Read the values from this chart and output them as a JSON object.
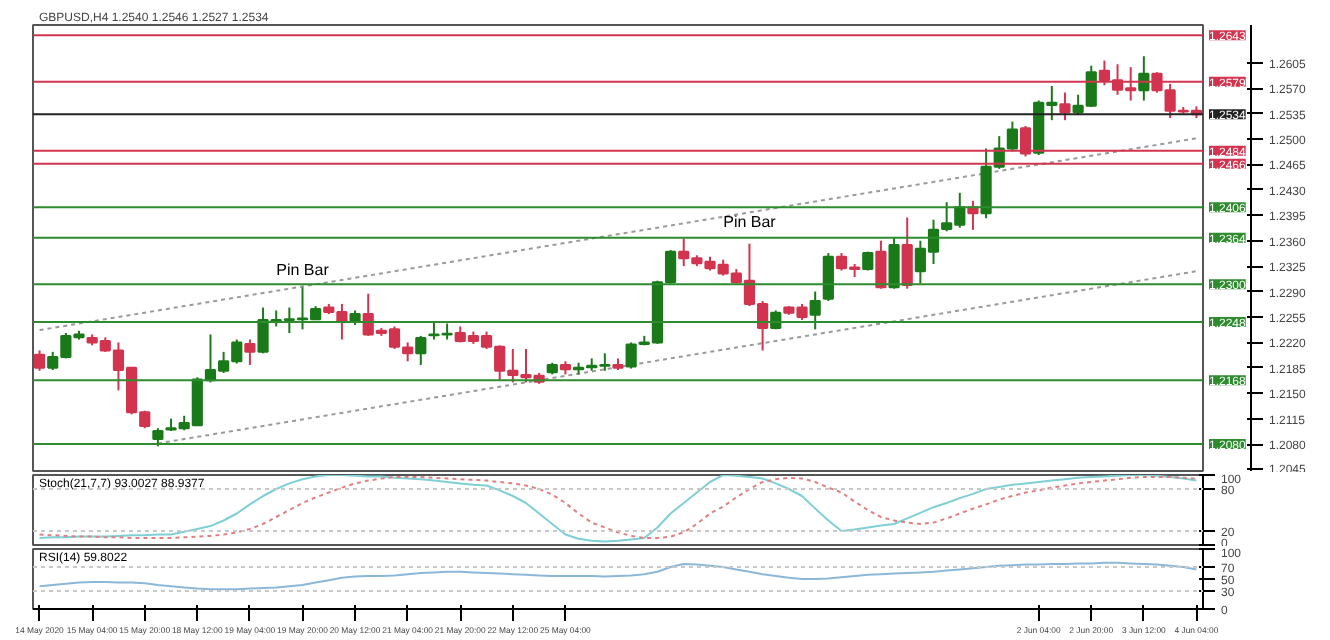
{
  "chart_data": [
    {
      "type": "candlestick",
      "title": "GBPUSD,H4 1.2540 1.2546 1.2527 1.2534",
      "tick_labels": "y",
      "ohlc": [
        [
          1.2203,
          1.2209,
          1.2181,
          1.2185
        ],
        [
          1.2185,
          1.2207,
          1.2182,
          1.22
        ],
        [
          1.22,
          1.2233,
          1.2198,
          1.2229
        ],
        [
          1.2227,
          1.2236,
          1.2224,
          1.2231
        ],
        [
          1.2226,
          1.2231,
          1.2216,
          1.222
        ],
        [
          1.2222,
          1.2227,
          1.2207,
          1.2209
        ],
        [
          1.2209,
          1.222,
          1.2154,
          1.2182
        ],
        [
          1.2185,
          1.2186,
          1.2121,
          1.2124
        ],
        [
          1.2124,
          1.2126,
          1.2102,
          1.2105
        ],
        [
          1.2087,
          1.2102,
          1.2077,
          1.2098
        ],
        [
          1.21,
          1.2115,
          1.2098,
          1.2102
        ],
        [
          1.2102,
          1.2119,
          1.2099,
          1.2109
        ],
        [
          1.2106,
          1.2172,
          1.2105,
          1.2169
        ],
        [
          1.2168,
          1.2231,
          1.2165,
          1.2182
        ],
        [
          1.2181,
          1.2207,
          1.2178,
          1.2194
        ],
        [
          1.2194,
          1.2224,
          1.2191,
          1.222
        ],
        [
          1.2218,
          1.2224,
          1.2189,
          1.2207
        ],
        [
          1.2207,
          1.2268,
          1.2205,
          1.2251
        ],
        [
          1.2249,
          1.2264,
          1.2242,
          1.2251
        ],
        [
          1.2251,
          1.2268,
          1.2233,
          1.2252
        ],
        [
          1.2252,
          1.2296,
          1.2238,
          1.2253
        ],
        [
          1.2252,
          1.227,
          1.2251,
          1.2266
        ],
        [
          1.2268,
          1.2273,
          1.2259,
          1.2262
        ],
        [
          1.2262,
          1.2273,
          1.2224,
          1.2249
        ],
        [
          1.2249,
          1.2264,
          1.2244,
          1.2259
        ],
        [
          1.2259,
          1.2287,
          1.2229,
          1.2231
        ],
        [
          1.2236,
          1.224,
          1.2229,
          1.2233
        ],
        [
          1.2238,
          1.2242,
          1.2211,
          1.2214
        ],
        [
          1.2213,
          1.222,
          1.2194,
          1.2205
        ],
        [
          1.2205,
          1.2229,
          1.2189,
          1.2226
        ],
        [
          1.223,
          1.2249,
          1.2224,
          1.2231
        ],
        [
          1.2231,
          1.2246,
          1.2224,
          1.2232
        ],
        [
          1.2233,
          1.2242,
          1.222,
          1.2222
        ],
        [
          1.2229,
          1.2235,
          1.2218,
          1.2222
        ],
        [
          1.2229,
          1.2235,
          1.2211,
          1.2214
        ],
        [
          1.2214,
          1.2216,
          1.2168,
          1.2181
        ],
        [
          1.2181,
          1.2211,
          1.2165,
          1.2175
        ],
        [
          1.2175,
          1.2211,
          1.2165,
          1.2172
        ],
        [
          1.2174,
          1.2178,
          1.2163,
          1.2166
        ],
        [
          1.2179,
          1.2192,
          1.2176,
          1.2189
        ],
        [
          1.2189,
          1.2194,
          1.2176,
          1.2183
        ],
        [
          1.2183,
          1.2192,
          1.2176,
          1.2185
        ],
        [
          1.2186,
          1.2198,
          1.2181,
          1.2188
        ],
        [
          1.2188,
          1.2205,
          1.2181,
          1.2189
        ],
        [
          1.2189,
          1.2198,
          1.2182,
          1.2185
        ],
        [
          1.2187,
          1.222,
          1.2184,
          1.2217
        ],
        [
          1.2218,
          1.2229,
          1.2216,
          1.222
        ],
        [
          1.222,
          1.2305,
          1.2218,
          1.2303
        ],
        [
          1.2303,
          1.2347,
          1.2301,
          1.2345
        ],
        [
          1.2345,
          1.2363,
          1.2325,
          1.2336
        ],
        [
          1.2336,
          1.234,
          1.2325,
          1.2329
        ],
        [
          1.2331,
          1.2338,
          1.2319,
          1.2322
        ],
        [
          1.2327,
          1.2334,
          1.2312,
          1.2315
        ],
        [
          1.2315,
          1.2321,
          1.2301,
          1.2303
        ],
        [
          1.2305,
          1.2356,
          1.227,
          1.2273
        ],
        [
          1.2273,
          1.2277,
          1.2209,
          1.224
        ],
        [
          1.224,
          1.2264,
          1.2238,
          1.2261
        ],
        [
          1.2268,
          1.227,
          1.2258,
          1.2261
        ],
        [
          1.2268,
          1.2273,
          1.2251,
          1.2255
        ],
        [
          1.2258,
          1.229,
          1.2238,
          1.2277
        ],
        [
          1.228,
          1.2343,
          1.2277,
          1.2338
        ],
        [
          1.2338,
          1.2343,
          1.2319,
          1.2322
        ],
        [
          1.2323,
          1.2328,
          1.231,
          1.2321
        ],
        [
          1.2321,
          1.2345,
          1.2319,
          1.2343
        ],
        [
          1.2345,
          1.236,
          1.2294,
          1.2296
        ],
        [
          1.2296,
          1.2364,
          1.2294,
          1.2354
        ],
        [
          1.2354,
          1.2392,
          1.2294,
          1.2299
        ],
        [
          1.2318,
          1.236,
          1.2301,
          1.2349
        ],
        [
          1.2345,
          1.2389,
          1.2328,
          1.2375
        ],
        [
          1.2376,
          1.2413,
          1.2373,
          1.2384
        ],
        [
          1.2382,
          1.2426,
          1.2378,
          1.2406
        ],
        [
          1.2406,
          1.2415,
          1.2375,
          1.2398
        ],
        [
          1.2398,
          1.2487,
          1.2391,
          1.2462
        ],
        [
          1.2462,
          1.2504,
          1.2459,
          1.2487
        ],
        [
          1.2487,
          1.2524,
          1.2483,
          1.2513
        ],
        [
          1.2515,
          1.2518,
          1.2476,
          1.248
        ],
        [
          1.2481,
          1.2553,
          1.2478,
          1.255
        ],
        [
          1.2547,
          1.2573,
          1.2526,
          1.255
        ],
        [
          1.2548,
          1.2564,
          1.2526,
          1.2537
        ],
        [
          1.2537,
          1.2561,
          1.2533,
          1.2546
        ],
        [
          1.2546,
          1.2601,
          1.2544,
          1.2592
        ],
        [
          1.2594,
          1.2608,
          1.2574,
          1.2581
        ],
        [
          1.2581,
          1.2603,
          1.2561,
          1.2568
        ],
        [
          1.257,
          1.2599,
          1.2553,
          1.2567
        ],
        [
          1.2567,
          1.2614,
          1.2553,
          1.259
        ],
        [
          1.259,
          1.2592,
          1.2564,
          1.2567
        ],
        [
          1.2567,
          1.2576,
          1.2529,
          1.2539
        ],
        [
          1.2539,
          1.2544,
          1.2535,
          1.2538
        ],
        [
          1.2539,
          1.2545,
          1.2529,
          1.2534
        ]
      ],
      "colors": [
        "#d2344f",
        "#1a7a1a",
        "#1a7a1a",
        "#1a7a1a",
        "#d2344f",
        "#d2344f",
        "#d2344f",
        "#d2344f",
        "#d2344f",
        "#1a7a1a",
        "#1a7a1a",
        "#1a7a1a",
        "#1a7a1a",
        "#1a7a1a",
        "#1a7a1a",
        "#1a7a1a",
        "#d2344f",
        "#1a7a1a",
        "#1a7a1a",
        "#1a7a1a",
        "#1a7a1a",
        "#1a7a1a",
        "#d2344f",
        "#d2344f",
        "#1a7a1a",
        "#d2344f",
        "#d2344f",
        "#d2344f",
        "#d2344f",
        "#1a7a1a",
        "#1a7a1a",
        "#1a7a1a",
        "#d2344f",
        "#d2344f",
        "#d2344f",
        "#d2344f",
        "#d2344f",
        "#d2344f",
        "#d2344f",
        "#1a7a1a",
        "#d2344f",
        "#1a7a1a",
        "#1a7a1a",
        "#1a7a1a",
        "#d2344f",
        "#1a7a1a",
        "#1a7a1a",
        "#1a7a1a",
        "#1a7a1a",
        "#d2344f",
        "#d2344f",
        "#d2344f",
        "#d2344f",
        "#d2344f",
        "#d2344f",
        "#d2344f",
        "#1a7a1a",
        "#d2344f",
        "#d2344f",
        "#1a7a1a",
        "#1a7a1a",
        "#d2344f",
        "#d2344f",
        "#1a7a1a",
        "#d2344f",
        "#1a7a1a",
        "#d2344f",
        "#1a7a1a",
        "#1a7a1a",
        "#1a7a1a",
        "#1a7a1a",
        "#d2344f",
        "#1a7a1a",
        "#1a7a1a",
        "#1a7a1a",
        "#d2344f",
        "#1a7a1a",
        "#1a7a1a",
        "#d2344f",
        "#1a7a1a",
        "#1a7a1a",
        "#d2344f",
        "#d2344f",
        "#d2344f",
        "#1a7a1a",
        "#d2344f",
        "#d2344f",
        "#d2344f",
        "#d2344f"
      ],
      "series": [
        {
          "type": "line",
          "values": [
            1.2237,
            1.224,
            1.2243,
            1.2246,
            1.2249,
            1.2252,
            1.2255,
            1.2258,
            1.2261,
            1.2264,
            1.2267,
            1.227,
            1.2273,
            1.2276,
            1.2279,
            1.2282,
            1.2285,
            1.2288,
            1.2291,
            1.2294,
            1.2297,
            1.23,
            1.2303,
            1.2306,
            1.2309,
            1.2312,
            1.2315,
            1.2318,
            1.2321,
            1.2324,
            1.2327,
            1.233,
            1.2333,
            1.2336,
            1.2339,
            1.2342,
            1.2345,
            1.2348,
            1.2351,
            1.2354,
            1.2357,
            1.236,
            1.2363,
            1.2366,
            1.2369,
            1.2372,
            1.2375,
            1.2378,
            1.2381,
            1.2384,
            1.2387,
            1.239,
            1.2393,
            1.2396,
            1.2399,
            1.2402,
            1.2405,
            1.2408,
            1.2411,
            1.2414,
            1.2417,
            1.242,
            1.2423,
            1.2426,
            1.2429,
            1.2432,
            1.2435,
            1.2438,
            1.2441,
            1.2444,
            1.2447,
            1.245,
            1.2453,
            1.2456,
            1.2459,
            1.2462,
            1.2465,
            1.2468,
            1.2471,
            1.2474,
            1.2477,
            1.248,
            1.2483,
            1.2486,
            1.2489,
            1.2492,
            1.2495,
            1.2498,
            1.2501
          ],
          "color": "#9a9a9a",
          "line_style": "dotted"
        },
        {
          "type": "line",
          "values": [
            null,
            null,
            null,
            null,
            null,
            null,
            null,
            null,
            null,
            1.2081,
            1.2084,
            1.2087,
            1.209,
            1.2093,
            1.2096,
            1.2099,
            1.2102,
            1.2105,
            1.2108,
            1.2111,
            1.2114,
            1.2117,
            1.212,
            1.2123,
            1.2126,
            1.2129,
            1.2132,
            1.2135,
            1.2138,
            1.2141,
            1.2144,
            1.2147,
            1.215,
            1.2153,
            1.2156,
            1.2159,
            1.2162,
            1.2165,
            1.2168,
            1.2171,
            1.2174,
            1.2177,
            1.218,
            1.2183,
            1.2186,
            1.2189,
            1.2192,
            1.2195,
            1.2198,
            1.2201,
            1.2204,
            1.2207,
            1.221,
            1.2213,
            1.2216,
            1.2219,
            1.2222,
            1.2225,
            1.2228,
            1.2231,
            1.2234,
            1.2237,
            1.224,
            1.2243,
            1.2246,
            1.2249,
            1.2252,
            1.2255,
            1.2258,
            1.2261,
            1.2264,
            1.2267,
            1.227,
            1.2273,
            1.2276,
            1.2279,
            1.2282,
            1.2285,
            1.2288,
            1.2291,
            1.2294,
            1.2297,
            1.23,
            1.2303,
            1.2306,
            1.2309,
            1.2312,
            1.2315,
            1.2318
          ],
          "color": "#9a9a9a",
          "line_style": "dotted"
        }
      ],
      "ylim": [
        1.2043,
        1.2657
      ],
      "yticks": [
        {
          "value": 1.2045,
          "label": "1.2045"
        },
        {
          "value": 1.208,
          "label": "1.2080"
        },
        {
          "value": 1.2115,
          "label": "1.2115"
        },
        {
          "value": 1.215,
          "label": "1.2150"
        },
        {
          "value": 1.2185,
          "label": "1.2185"
        },
        {
          "value": 1.222,
          "label": "1.2220"
        },
        {
          "value": 1.2255,
          "label": "1.2255"
        },
        {
          "value": 1.229,
          "label": "1.2290"
        },
        {
          "value": 1.2325,
          "label": "1.2325"
        },
        {
          "value": 1.236,
          "label": "1.2360"
        },
        {
          "value": 1.2395,
          "label": "1.2395"
        },
        {
          "value": 1.243,
          "label": "1.2430"
        },
        {
          "value": 1.2465,
          "label": "1.2465"
        },
        {
          "value": 1.25,
          "label": "1.2500"
        },
        {
          "value": 1.2535,
          "label": "1.2535"
        },
        {
          "value": 1.257,
          "label": "1.2570"
        },
        {
          "value": 1.2605,
          "label": "1.2605"
        }
      ],
      "ref_lines": [
        {
          "axis": "y",
          "value": 1.2643,
          "label": "1.2643",
          "color": "#d2344f"
        },
        {
          "axis": "y",
          "value": 1.2579,
          "label": "1.2579",
          "color": "#d2344f"
        },
        {
          "axis": "y",
          "value": 1.2534,
          "label": "1.2534",
          "color": "#222222"
        },
        {
          "axis": "y",
          "value": 1.2484,
          "label": "1.2484",
          "color": "#d2344f"
        },
        {
          "axis": "y",
          "value": 1.2466,
          "label": "1.2466",
          "color": "#d2344f"
        },
        {
          "axis": "y",
          "value": 1.2406,
          "label": "1.2406",
          "color": "#2e8b2e"
        },
        {
          "axis": "y",
          "value": 1.2364,
          "label": "1.2364",
          "color": "#2e8b2e"
        },
        {
          "axis": "y",
          "value": 1.23,
          "label": "1.2300",
          "color": "#2e8b2e"
        },
        {
          "axis": "y",
          "value": 1.2248,
          "label": "1.2248",
          "color": "#2e8b2e"
        },
        {
          "axis": "y",
          "value": 1.2168,
          "label": "1.2168",
          "color": "#2e8b2e"
        },
        {
          "axis": "y",
          "value": 1.208,
          "label": "1.2080",
          "color": "#2e8b2e"
        }
      ],
      "annotations": [
        {
          "text": "Pin Bar",
          "y": 1.2308
        },
        {
          "text": "Pin Bar",
          "y": 1.2373
        }
      ]
    },
    {
      "type": "line",
      "title": "Stoch(21,7,7) 93.0027 88.9377",
      "tick_labels": "y",
      "ylim": [
        0,
        100
      ],
      "yticks": [
        0,
        20,
        80,
        100
      ],
      "series": [
        {
          "values": [
            10,
            11,
            11,
            12,
            12,
            12,
            13,
            14,
            14,
            15,
            15,
            19,
            23,
            27,
            35,
            45,
            58,
            70,
            80,
            88,
            94,
            98,
            100,
            100,
            99,
            98,
            98,
            96,
            95,
            94,
            92,
            90,
            88,
            86,
            85,
            78,
            70,
            60,
            45,
            30,
            15,
            9,
            6,
            5,
            6,
            8,
            10,
            25,
            45,
            60,
            75,
            90,
            100,
            99,
            97,
            95,
            88,
            80,
            70,
            52,
            35,
            20,
            22,
            25,
            28,
            30,
            38,
            46,
            54,
            60,
            67,
            73,
            80,
            83,
            86,
            88,
            90,
            92,
            94,
            96,
            97,
            98,
            99,
            100,
            100,
            99,
            97,
            95,
            92
          ],
          "color": "#7fcfd6"
        },
        {
          "values": [
            15,
            14,
            13,
            12,
            12,
            11,
            11,
            10,
            10,
            10,
            10,
            11,
            12,
            13,
            15,
            18,
            23,
            30,
            40,
            50,
            60,
            68,
            75,
            82,
            88,
            92,
            95,
            97,
            97,
            97,
            96,
            95,
            94,
            93,
            92,
            90,
            88,
            85,
            80,
            72,
            60,
            45,
            32,
            25,
            18,
            13,
            10,
            10,
            12,
            18,
            30,
            45,
            55,
            68,
            80,
            90,
            94,
            96,
            95,
            90,
            82,
            75,
            62,
            50,
            40,
            35,
            32,
            30,
            32,
            38,
            45,
            52,
            58,
            65,
            70,
            75,
            78,
            82,
            85,
            88,
            90,
            92,
            94,
            96,
            97,
            97,
            97,
            96,
            95
          ],
          "color": "#e08080",
          "line_style": "dotted"
        }
      ],
      "ref_lines": [
        {
          "axis": "y",
          "value": 80,
          "color": "#c8c8c8",
          "line_style": "dotted"
        },
        {
          "axis": "y",
          "value": 20,
          "color": "#c8c8c8",
          "line_style": "dotted"
        }
      ]
    },
    {
      "type": "line",
      "title": "RSI(14) 59.8022",
      "categories": [
        "14 May 2020",
        null,
        null,
        null,
        "15 May 04:00",
        null,
        null,
        null,
        "15 May 20:00",
        null,
        null,
        null,
        "18 May 12:00",
        null,
        null,
        null,
        "19 May 04:00",
        null,
        null,
        null,
        "19 May 20:00",
        null,
        null,
        null,
        "20 May 12:00",
        null,
        null,
        null,
        "21 May 04:00",
        null,
        null,
        null,
        "21 May 20:00",
        null,
        null,
        null,
        "22 May 12:00",
        null,
        null,
        null,
        "25 May 04:00",
        null,
        null,
        null,
        null,
        null,
        null,
        null,
        null,
        null,
        null,
        null,
        null,
        null,
        null,
        null,
        null,
        null,
        null,
        null,
        null,
        null,
        null,
        null,
        null,
        null,
        null,
        null,
        null,
        null,
        null,
        null,
        null,
        null,
        null,
        null,
        "2 Jun 04:00",
        null,
        null,
        null,
        "2 Jun 20:00",
        null,
        null,
        null,
        "3 Jun 12:00",
        null,
        null,
        null,
        "4 Jun 04:00"
      ],
      "ylim": [
        0,
        100
      ],
      "yticks": [
        0,
        30,
        50,
        70,
        100
      ],
      "series": [
        {
          "values": [
            38,
            40,
            42,
            44,
            45,
            45,
            44,
            44,
            43,
            40,
            38,
            36,
            34,
            33,
            33,
            33,
            34,
            35,
            36,
            38,
            40,
            44,
            48,
            52,
            54,
            55,
            55,
            56,
            58,
            60,
            61,
            62,
            62,
            61,
            60,
            59,
            58,
            57,
            56,
            55,
            55,
            55,
            55,
            54,
            55,
            56,
            58,
            62,
            70,
            75,
            74,
            72,
            70,
            66,
            62,
            58,
            55,
            52,
            50,
            50,
            51,
            53,
            55,
            57,
            58,
            59,
            60,
            61,
            62,
            64,
            66,
            68,
            70,
            72,
            73,
            74,
            74,
            75,
            75,
            76,
            76,
            77,
            77,
            76,
            75,
            74,
            72,
            70,
            66
          ],
          "color": "#8bb8d8"
        }
      ],
      "ref_lines": [
        {
          "axis": "y",
          "value": 70,
          "color": "#c8c8c8",
          "line_style": "dotted"
        },
        {
          "axis": "y",
          "value": 30,
          "color": "#c8c8c8",
          "line_style": "dotted"
        }
      ]
    }
  ]
}
